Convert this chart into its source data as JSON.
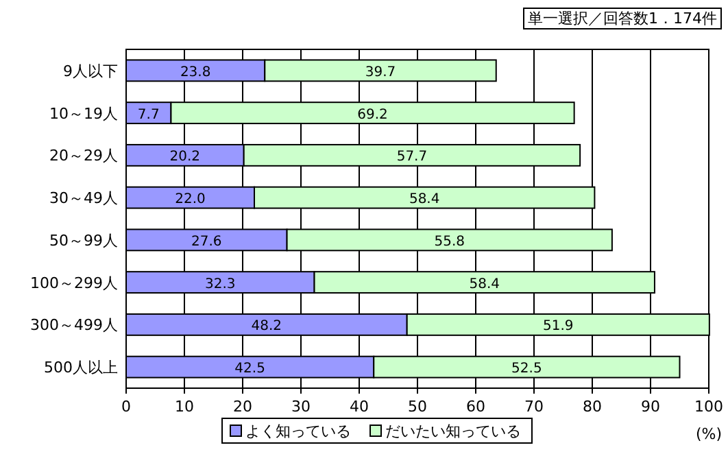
{
  "chart_data": {
    "type": "bar",
    "orientation": "horizontal",
    "stacked": true,
    "categories": [
      "9人以下",
      "10～19人",
      "20～29人",
      "30～49人",
      "50～99人",
      "100～299人",
      "300～499人",
      "500人以上"
    ],
    "series": [
      {
        "name": "よく知っている",
        "color": "#9999ff",
        "values": [
          23.8,
          7.7,
          20.2,
          22.0,
          27.6,
          32.3,
          48.2,
          42.5
        ],
        "value_labels": [
          "23.8",
          "7.7",
          "20.2",
          "22.0",
          "27.6",
          "32.3",
          "48.2",
          "42.5"
        ]
      },
      {
        "name": "だいたい知っている",
        "color": "#ccffcc",
        "values": [
          39.7,
          69.2,
          57.7,
          58.4,
          55.8,
          58.4,
          51.9,
          52.5
        ],
        "value_labels": [
          "39.7",
          "69.2",
          "57.7",
          "58.4",
          "55.8",
          "58.4",
          "51.9",
          "52.5"
        ]
      }
    ],
    "xlim": [
      0,
      100
    ],
    "xticks": [
      0,
      10,
      20,
      30,
      40,
      50,
      60,
      70,
      80,
      90,
      100
    ],
    "xlabel": "(%)",
    "grid": "x",
    "legend": "bottom",
    "annotations": [
      "単一選択／回答数1．174件"
    ]
  }
}
